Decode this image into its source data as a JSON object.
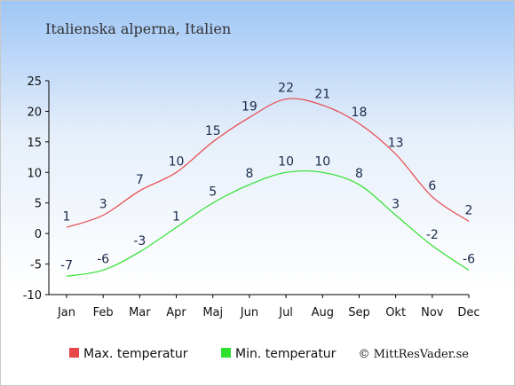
{
  "chart_data": {
    "type": "line",
    "title": "Italienska alperna, Italien",
    "categories": [
      "Jan",
      "Feb",
      "Mar",
      "Apr",
      "Maj",
      "Jun",
      "Jul",
      "Aug",
      "Sep",
      "Okt",
      "Nov",
      "Dec"
    ],
    "series": [
      {
        "name": "Max. temperatur",
        "color": "#e8474a",
        "values": [
          1,
          3,
          7,
          10,
          15,
          19,
          22,
          21,
          18,
          13,
          6,
          2
        ]
      },
      {
        "name": "Min. temperatur",
        "color": "#2fe02f",
        "values": [
          -7,
          -6,
          -3,
          1,
          5,
          8,
          10,
          10,
          8,
          3,
          -2,
          -6
        ]
      }
    ],
    "ylim": [
      -10,
      25
    ],
    "yticks": [
      -10,
      -5,
      0,
      5,
      10,
      15,
      20,
      25
    ],
    "grid": false,
    "legend": "bottom-left",
    "credit": "© MittResVader.se"
  }
}
